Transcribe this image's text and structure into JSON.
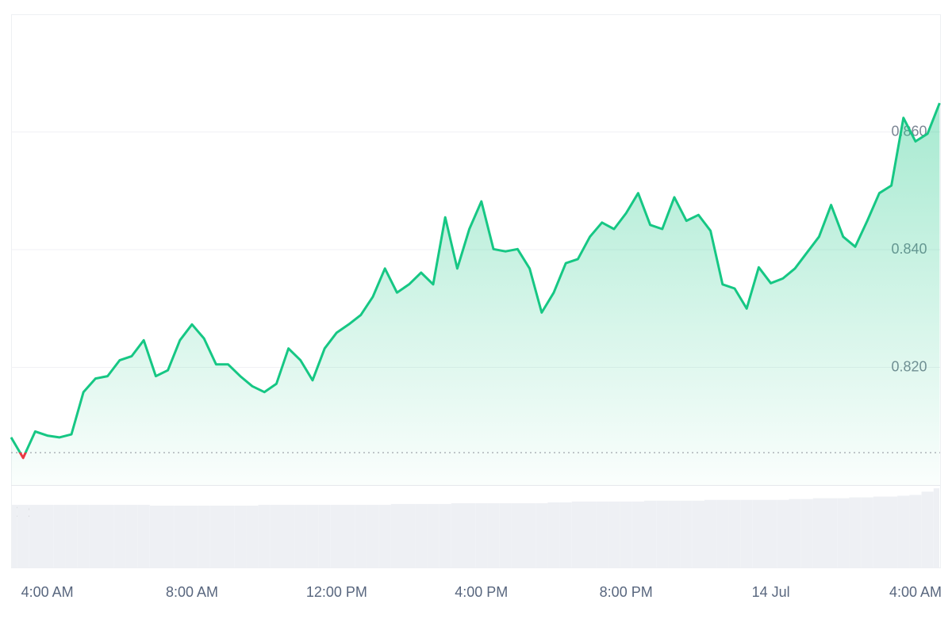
{
  "chart_data": {
    "type": "line",
    "categories": [
      null,
      null,
      null,
      "4:00 AM",
      null,
      null,
      null,
      null,
      null,
      null,
      null,
      null,
      null,
      null,
      null,
      "8:00 AM",
      null,
      null,
      null,
      null,
      null,
      null,
      null,
      null,
      null,
      null,
      null,
      "12:00 PM",
      null,
      null,
      null,
      null,
      null,
      null,
      null,
      null,
      null,
      null,
      null,
      "4:00 PM",
      null,
      null,
      null,
      null,
      null,
      null,
      null,
      null,
      null,
      null,
      null,
      "8:00 PM",
      null,
      null,
      null,
      null,
      null,
      null,
      null,
      null,
      null,
      null,
      null,
      "14 Jul",
      null,
      null,
      null,
      null,
      null,
      null,
      null,
      null,
      null,
      null,
      null,
      "4:00 AM",
      null,
      null
    ],
    "series": [
      {
        "color": "#16c784",
        "down_color": "#ea3943",
        "values": [
          0.8081,
          0.8046,
          0.8091,
          0.8084,
          0.8081,
          0.8086,
          0.8158,
          0.8181,
          0.8185,
          0.8212,
          0.8219,
          0.8246,
          0.8185,
          0.8195,
          0.8246,
          0.8273,
          0.8249,
          0.8205,
          0.8205,
          0.8185,
          0.8168,
          0.8158,
          0.8172,
          0.8232,
          0.8212,
          0.8178,
          0.8232,
          0.8259,
          0.8273,
          0.8289,
          0.832,
          0.8368,
          0.8327,
          0.8341,
          0.8361,
          0.8341,
          0.8455,
          0.8368,
          0.8435,
          0.8482,
          0.8401,
          0.8397,
          0.8401,
          0.8368,
          0.8293,
          0.8327,
          0.8377,
          0.8384,
          0.8422,
          0.8446,
          0.8435,
          0.8462,
          0.8496,
          0.8442,
          0.8435,
          0.8489,
          0.8449,
          0.8459,
          0.8432,
          0.8341,
          0.8334,
          0.83,
          0.837,
          0.8343,
          0.8351,
          0.8368,
          0.8395,
          0.8422,
          0.8476,
          0.8422,
          0.8405,
          0.8449,
          0.8496,
          0.8509,
          0.8624,
          0.8584,
          0.8597,
          0.8649
        ]
      }
    ],
    "baseline": 0.8055,
    "ylim": [
      0.8,
      0.88
    ],
    "yticks": [
      {
        "value": 0.82,
        "label": "0.820"
      },
      {
        "value": 0.84,
        "label": "0.840"
      },
      {
        "value": 0.86,
        "label": "0.860"
      }
    ],
    "grid": true,
    "volume_label": "12",
    "volume": {
      "color": "#eef0f4",
      "ylim": [
        0,
        100
      ],
      "values": [
        76,
        76,
        76,
        76,
        76,
        76,
        76,
        76,
        76,
        76,
        76,
        76,
        75,
        75,
        75,
        75,
        75,
        75,
        75,
        75,
        75,
        76,
        76,
        76,
        76,
        76,
        76,
        76,
        76,
        76,
        76,
        76,
        77,
        77,
        77,
        77,
        77,
        78,
        78,
        78,
        78,
        78,
        78,
        78,
        78,
        79,
        79,
        80,
        80,
        80,
        80,
        80,
        80,
        81,
        81,
        81,
        81,
        81,
        82,
        82,
        82,
        82,
        82,
        82,
        82,
        83,
        83,
        84,
        84,
        84,
        85,
        85,
        86,
        86,
        87,
        88,
        92,
        96
      ]
    }
  }
}
